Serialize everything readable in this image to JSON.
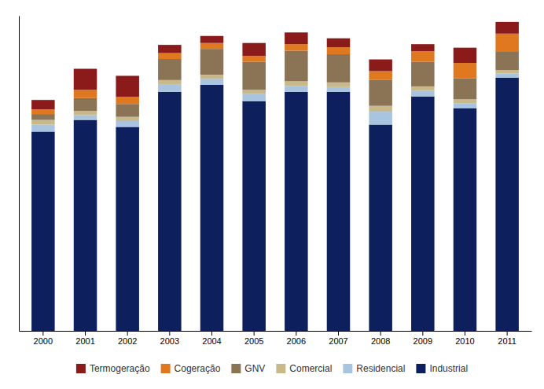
{
  "chart_data": {
    "type": "bar",
    "stacked": true,
    "categories": [
      "2000",
      "2001",
      "2002",
      "2003",
      "2004",
      "2005",
      "2006",
      "2007",
      "2008",
      "2009",
      "2010",
      "2011"
    ],
    "series": [
      {
        "name": "Industrial",
        "color": "#0d1f5c",
        "values": [
          8.5,
          9.0,
          8.7,
          10.2,
          10.5,
          9.8,
          10.2,
          10.2,
          8.8,
          10.0,
          9.5,
          10.8
        ]
      },
      {
        "name": "Residencial",
        "color": "#a8c4e0",
        "values": [
          0.3,
          0.2,
          0.25,
          0.3,
          0.25,
          0.3,
          0.25,
          0.2,
          0.55,
          0.25,
          0.2,
          0.18
        ]
      },
      {
        "name": "Comercial",
        "color": "#c8b98a",
        "values": [
          0.2,
          0.18,
          0.18,
          0.2,
          0.18,
          0.18,
          0.2,
          0.2,
          0.25,
          0.18,
          0.18,
          0.15
        ]
      },
      {
        "name": "GNV",
        "color": "#8b7355",
        "values": [
          0.25,
          0.55,
          0.55,
          0.9,
          1.1,
          1.2,
          1.3,
          1.2,
          1.1,
          1.05,
          0.9,
          0.8
        ]
      },
      {
        "name": "Cogeração",
        "color": "#e07820",
        "values": [
          0.2,
          0.35,
          0.3,
          0.25,
          0.25,
          0.25,
          0.28,
          0.3,
          0.38,
          0.45,
          0.65,
          0.75
        ]
      },
      {
        "name": "Termogeração",
        "color": "#8b1a1a",
        "values": [
          0.4,
          0.9,
          0.9,
          0.35,
          0.3,
          0.55,
          0.5,
          0.38,
          0.5,
          0.3,
          0.65,
          0.5
        ]
      }
    ],
    "ylim": [
      0,
      13.4436
    ],
    "grid": false,
    "legend": "bottom",
    "tick_labels": "x"
  }
}
